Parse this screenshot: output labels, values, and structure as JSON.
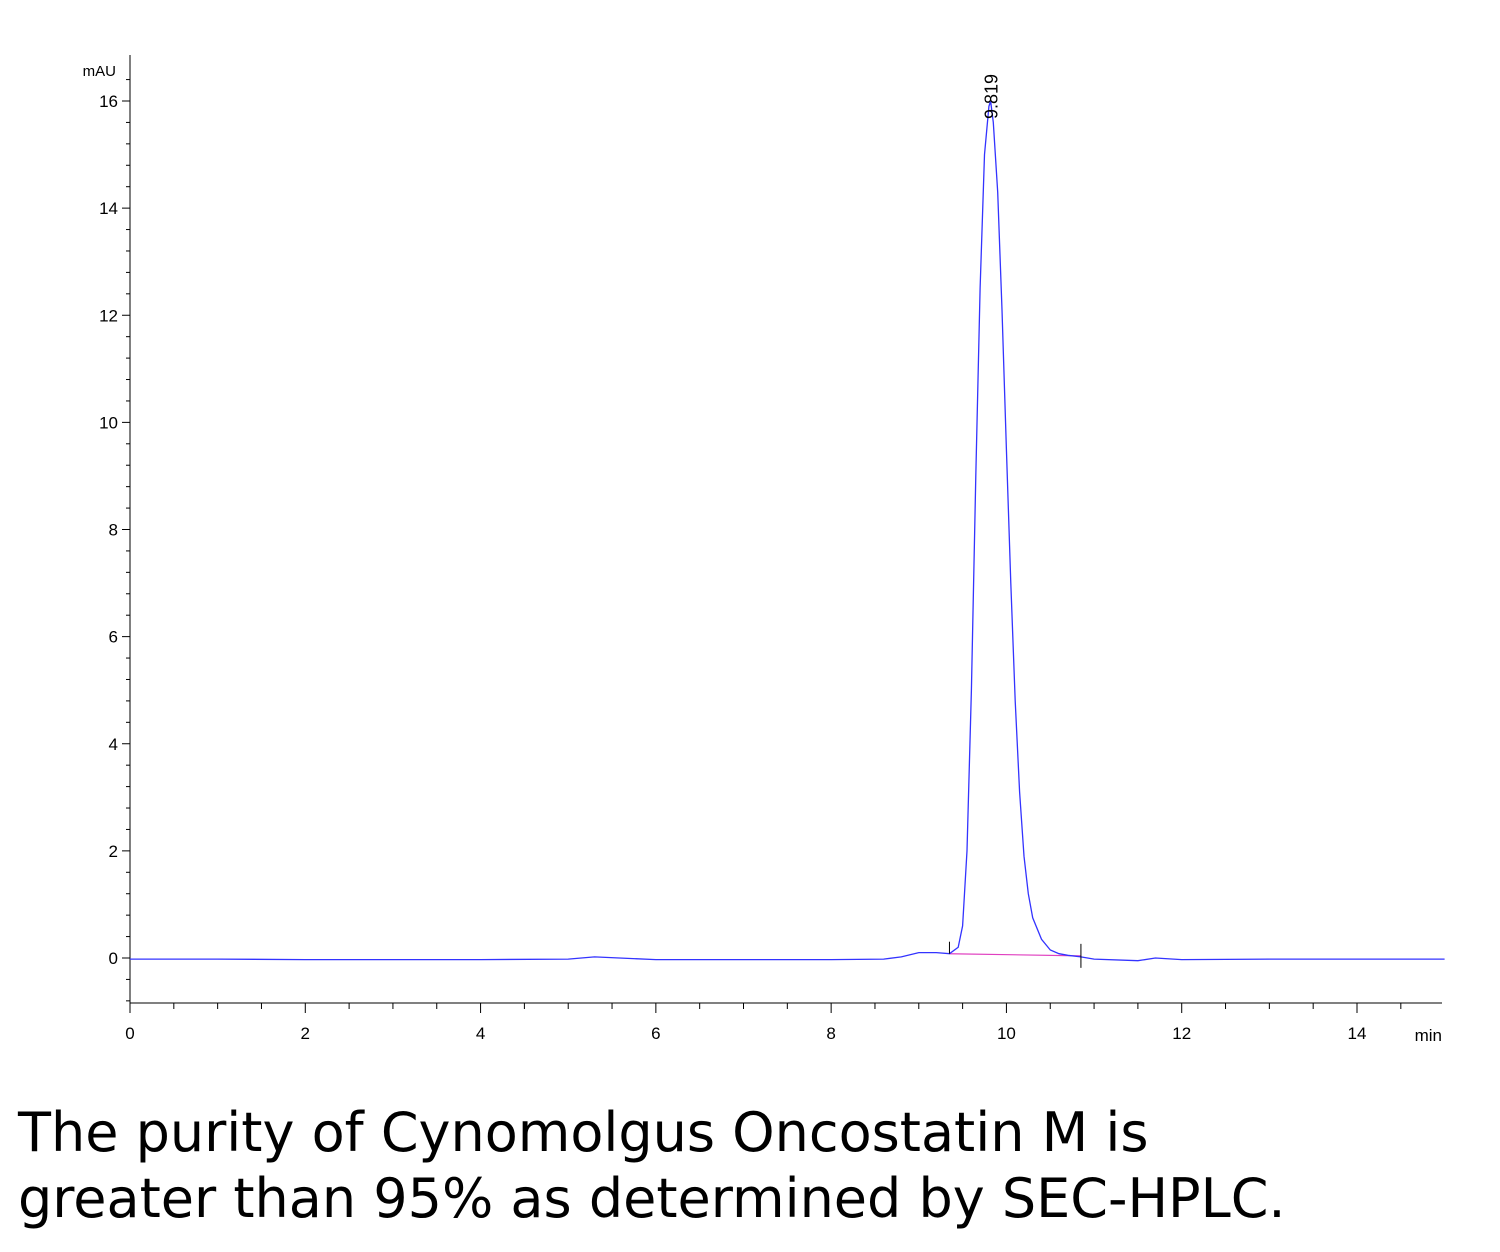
{
  "chart_data": {
    "type": "line",
    "xlabel": "min",
    "ylabel": "mAU",
    "xlim": [
      0,
      15
    ],
    "ylim": [
      -0.8,
      16.5
    ],
    "x_ticks": [
      0,
      2,
      4,
      6,
      8,
      10,
      12,
      14
    ],
    "y_ticks": [
      0,
      2,
      4,
      6,
      8,
      10,
      12,
      14,
      16
    ],
    "series": [
      {
        "color": "#3333ff",
        "x": [
          0,
          1,
          2,
          3,
          4,
          5,
          5.3,
          6,
          7,
          8,
          8.6,
          8.8,
          9.0,
          9.2,
          9.35,
          9.45,
          9.5,
          9.55,
          9.6,
          9.65,
          9.7,
          9.75,
          9.8,
          9.819,
          9.85,
          9.9,
          9.95,
          10.0,
          10.05,
          10.1,
          10.15,
          10.2,
          10.25,
          10.3,
          10.4,
          10.5,
          10.6,
          10.7,
          10.85,
          11.0,
          11.5,
          11.7,
          12,
          13,
          14,
          15
        ],
        "y": [
          -0.02,
          -0.02,
          -0.03,
          -0.03,
          -0.03,
          -0.02,
          0.02,
          -0.03,
          -0.03,
          -0.03,
          -0.02,
          0.02,
          0.1,
          0.1,
          0.08,
          0.2,
          0.6,
          2.0,
          5.0,
          9.0,
          12.5,
          15.0,
          15.9,
          16.0,
          15.6,
          14.3,
          12.1,
          9.5,
          7.0,
          4.8,
          3.1,
          1.9,
          1.2,
          0.75,
          0.35,
          0.15,
          0.08,
          0.05,
          0.02,
          -0.02,
          -0.05,
          0.0,
          -0.03,
          -0.02,
          -0.02,
          -0.02
        ]
      }
    ],
    "baseline": {
      "color": "#e040c0",
      "x": [
        9.35,
        10.85
      ],
      "y": [
        0.08,
        0.04
      ]
    },
    "peak_marker_times": [
      9.35,
      10.85
    ],
    "annotations": [
      {
        "text": "9.819",
        "x": 9.819,
        "y": 16.0
      }
    ]
  },
  "caption": {
    "line1": "The purity of Cynomolgus Oncostatin M is",
    "line2": "greater than 95% as determined by SEC-HPLC."
  }
}
